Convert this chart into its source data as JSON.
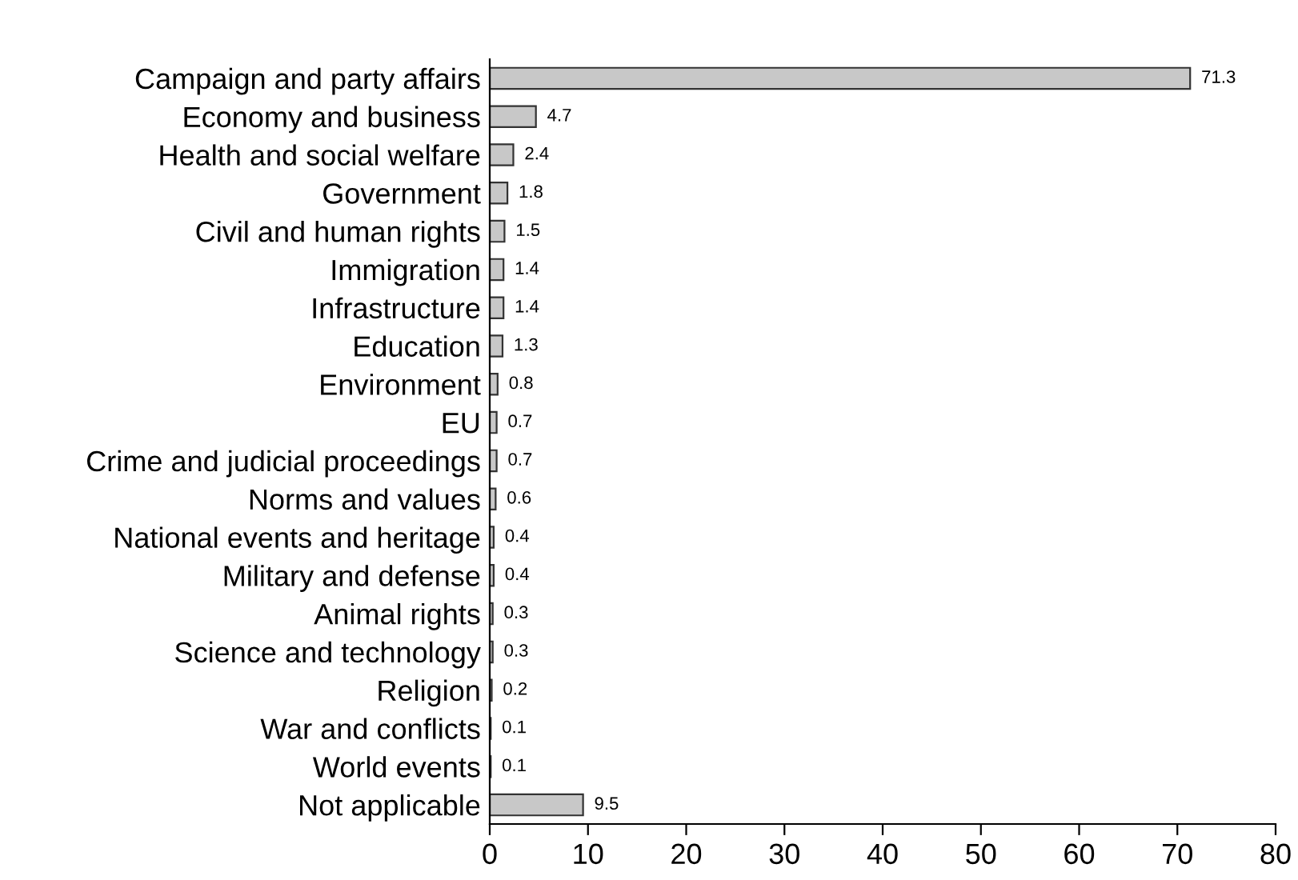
{
  "chart_data": {
    "type": "bar",
    "orientation": "horizontal",
    "categories": [
      "Campaign and party affairs",
      "Economy and business",
      "Health and social welfare",
      "Government",
      "Civil and human rights",
      "Immigration",
      "Infrastructure",
      "Education",
      "Environment",
      "EU",
      "Crime and judicial proceedings",
      "Norms and values",
      "National events and heritage",
      "Military and defense",
      "Animal rights",
      "Science and technology",
      "Religion",
      "War and conflicts",
      "World events",
      "Not applicable"
    ],
    "values": [
      71.3,
      4.7,
      2.4,
      1.8,
      1.5,
      1.4,
      1.4,
      1.3,
      0.8,
      0.7,
      0.7,
      0.6,
      0.4,
      0.4,
      0.3,
      0.3,
      0.2,
      0.1,
      0.1,
      9.5
    ],
    "color": "#c8c8c8",
    "xlim": [
      0,
      80
    ],
    "xticks": [
      0,
      10,
      20,
      30,
      40,
      50,
      60,
      70,
      80
    ],
    "data_labels": true,
    "grid": false,
    "legend": false
  }
}
